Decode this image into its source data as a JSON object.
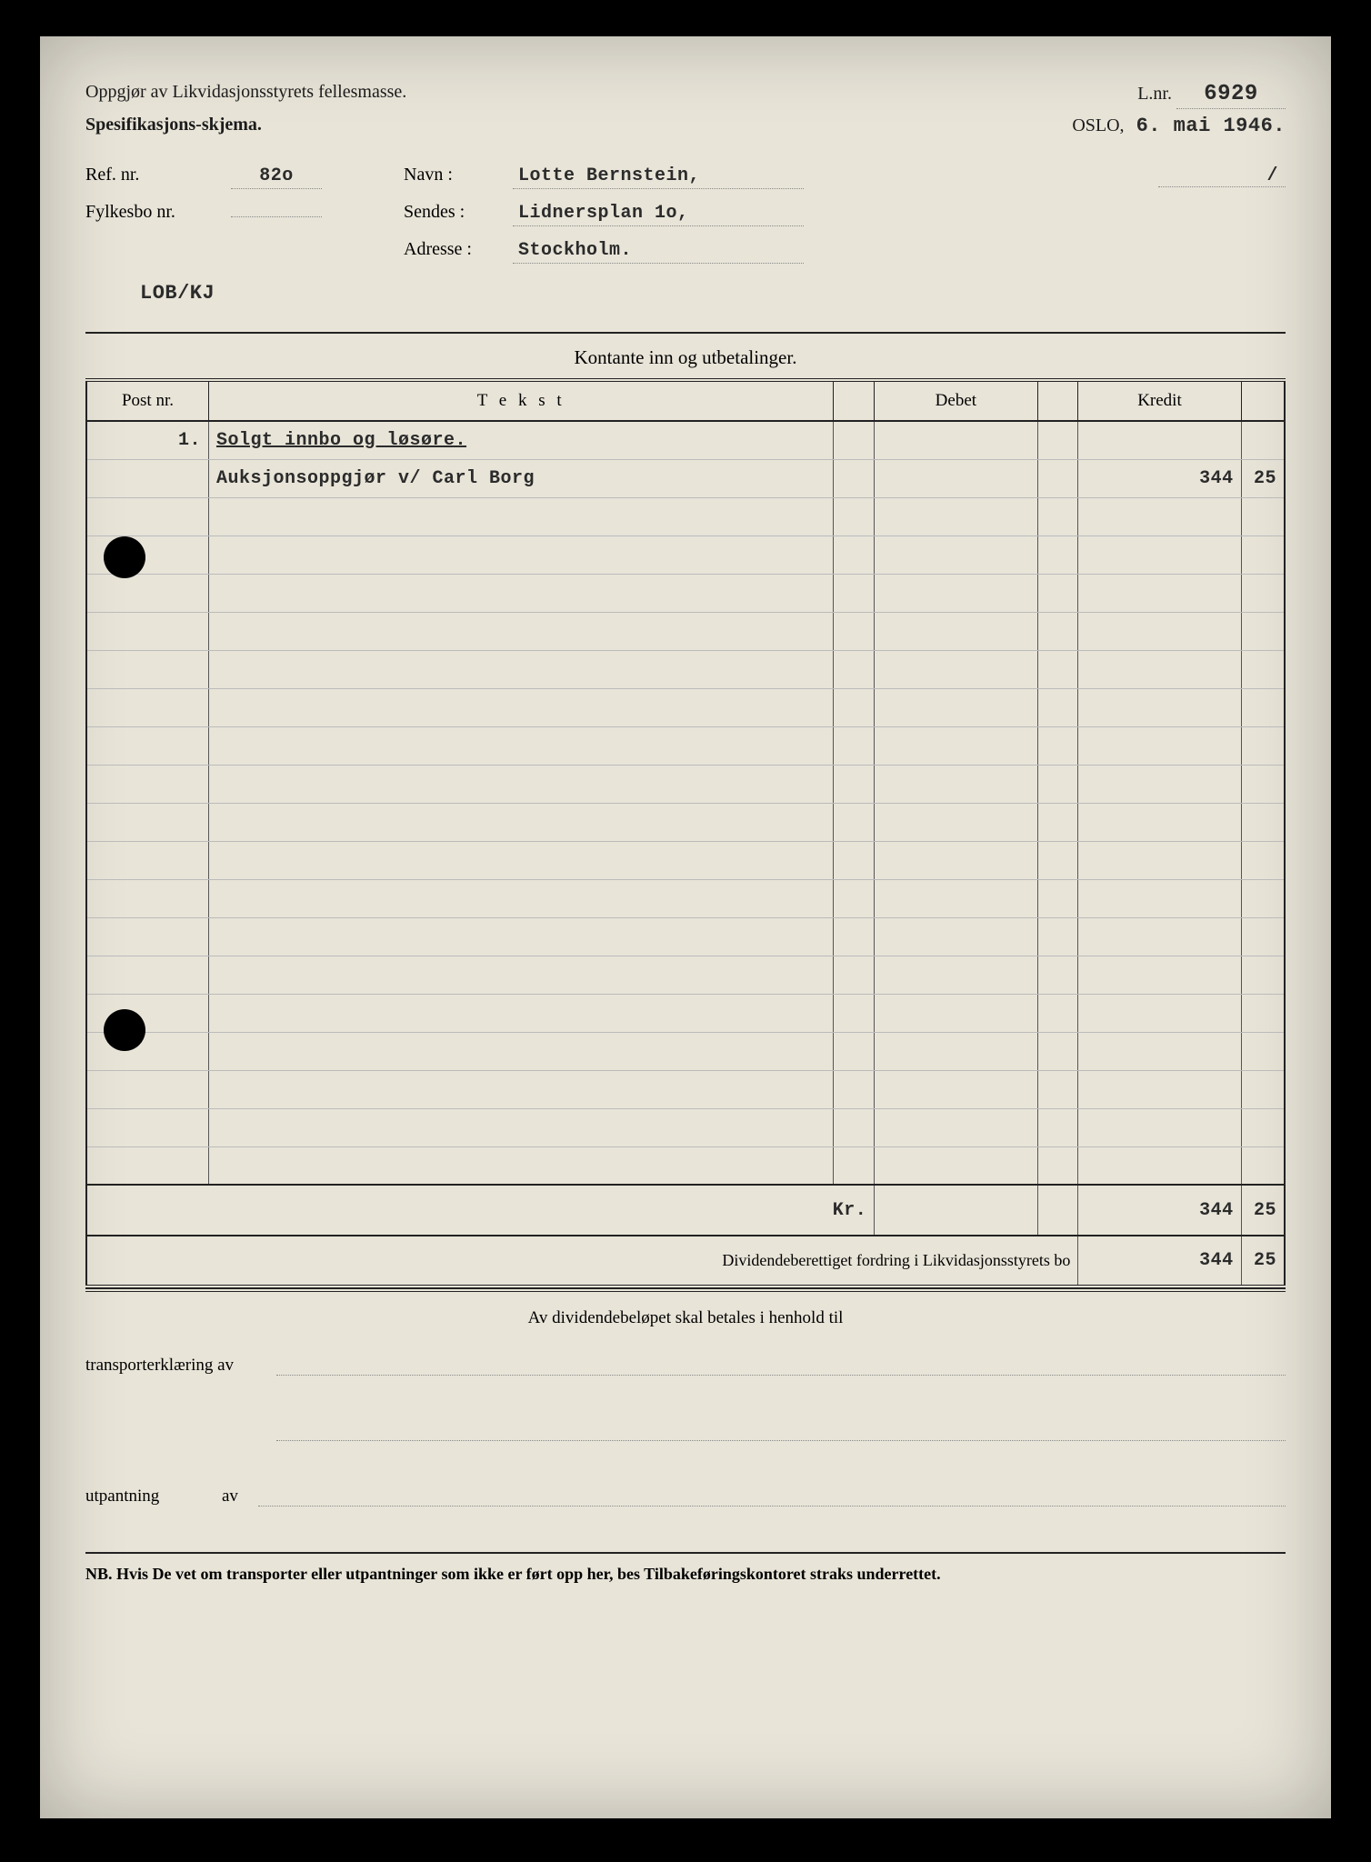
{
  "header": {
    "title_line1": "Oppgjør av Likvidasjonsstyrets fellesmasse.",
    "title_line2": "Spesifikasjons-skjema.",
    "lnr_label": "L.nr.",
    "lnr_value": "6929",
    "city": "OSLO,",
    "date": "6. mai 1946."
  },
  "info": {
    "ref_label": "Ref. nr.",
    "ref_value": "82o",
    "navn_label": "Navn :",
    "navn_value": "Lotte Bernstein,",
    "fylkesbo_label": "Fylkesbo nr.",
    "fylkesbo_value": "",
    "sendes_label": "Sendes :",
    "sendes_value": "Lidnersplan 1o,",
    "adresse_label": "Adresse :",
    "adresse_value": "Stockholm.",
    "code": "LOB/KJ",
    "slash": "/"
  },
  "section_title": "Kontante inn og utbetalinger.",
  "table": {
    "headers": {
      "post": "Post nr.",
      "tekst": "T e k s t",
      "debet": "Debet",
      "kredit": "Kredit"
    },
    "rows": [
      {
        "post": "1.",
        "tekst": "Solgt innbo og løsøre.",
        "tekst_underline": true,
        "debet": "",
        "debet_sub": "",
        "kredit": "",
        "kredit_sub": ""
      },
      {
        "post": "",
        "tekst": "Auksjonsoppgjør v/ Carl Borg",
        "tekst_underline": false,
        "debet": "",
        "debet_sub": "",
        "kredit": "344",
        "kredit_sub": "25"
      }
    ],
    "blank_row_count": 18,
    "sum": {
      "label": "Kr.",
      "debet": "",
      "debet_sub": "",
      "kredit": "344",
      "kredit_sub": "25"
    },
    "dividend": {
      "label": "Dividendeberettiget fordring i Likvidasjonsstyrets bo",
      "kredit": "344",
      "kredit_sub": "25"
    }
  },
  "footer": {
    "center_text": "Av dividendebeløpet skal betales i henhold til",
    "transport_label": "transporterklæring av",
    "utpantning_label": "utpantning",
    "av": "av",
    "nb_prefix": "NB.",
    "nb_text": "Hvis De vet om transporter eller utpantninger som ikke er ført opp her, bes Tilbakeføringskontoret straks underrettet."
  },
  "style": {
    "bg": "#e8e4d8",
    "ink": "#1b1b1b"
  }
}
